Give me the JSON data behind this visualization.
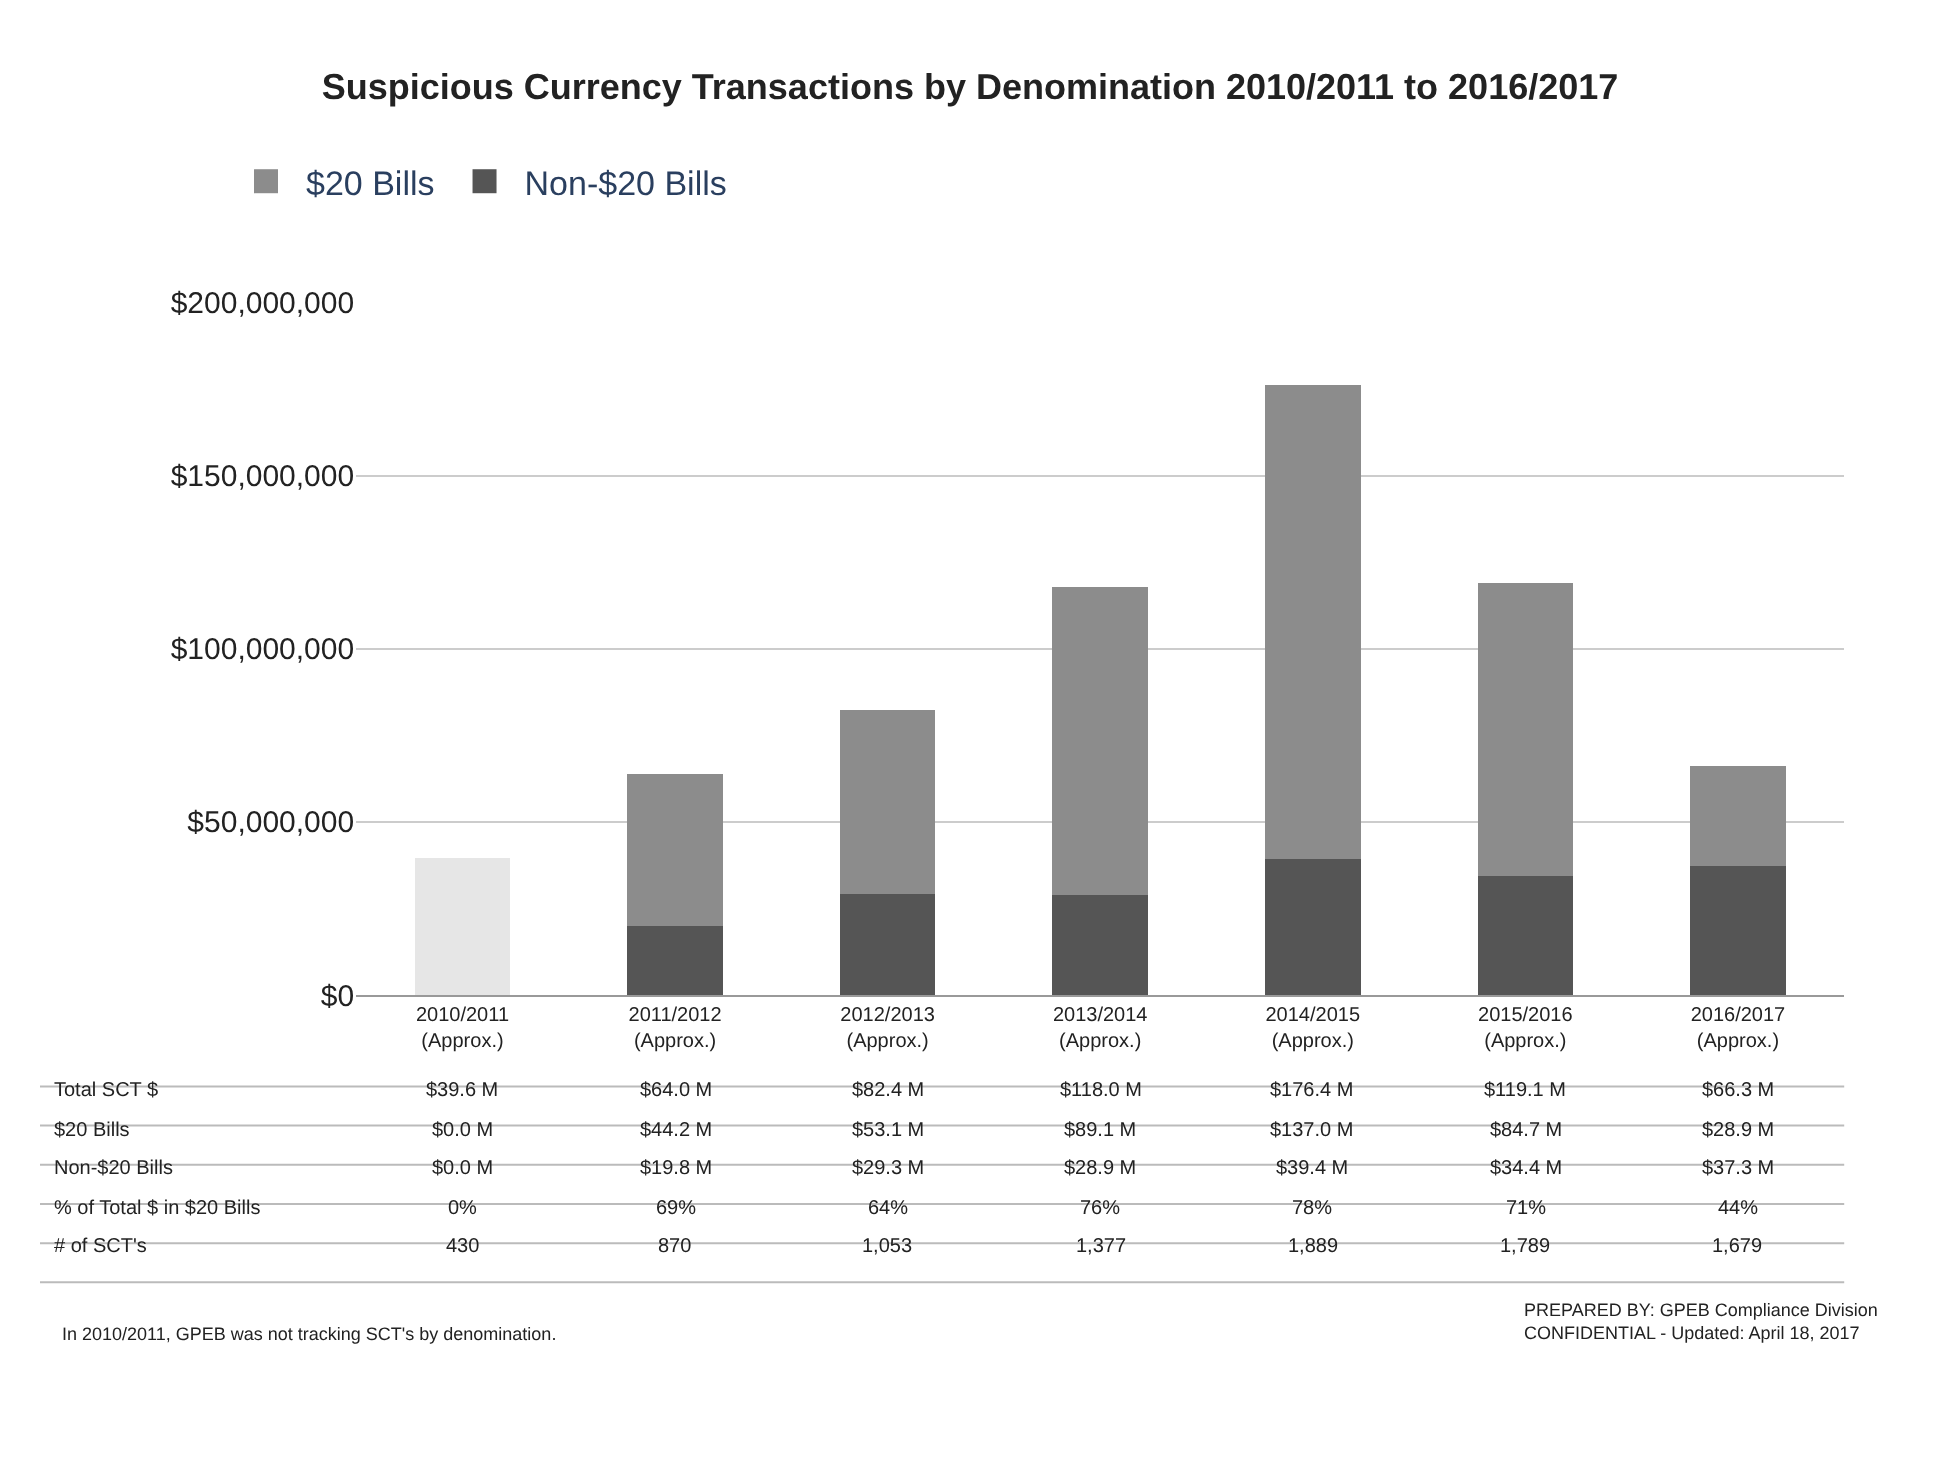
{
  "chart_data": {
    "type": "bar",
    "stacked": true,
    "title": "Suspicious Currency Transactions by Denomination 2010/2011 to 2016/2017",
    "categories": [
      "2010/2011\n(Approx.)",
      "2011/2012\n(Approx.)",
      "2012/2013\n(Approx.)",
      "2013/2014\n(Approx.)",
      "2014/2015\n(Approx.)",
      "2015/2016\n(Approx.)",
      "2016/2017\n(Approx.)"
    ],
    "series": [
      {
        "name": "Non-$20 Bills",
        "color": "#555555",
        "values": [
          0,
          19800000,
          29300000,
          28900000,
          39400000,
          34400000,
          37300000
        ],
        "value_labels": [
          "$0.0 M",
          "$19.8 M",
          "$29.3 M",
          "$28.9 M",
          "$39.4 M",
          "$34.4 M",
          "$37.3 M"
        ]
      },
      {
        "name": "$20 Bills",
        "color": "#8c8c8c",
        "values": [
          0,
          44200000,
          53100000,
          89100000,
          137000000,
          84700000,
          28900000
        ],
        "value_labels": [
          "$0.0 M",
          "$44.2 M",
          "$53.1 M",
          "$89.1 M",
          "$137.0 M",
          "$84.7 M",
          "$28.9 M"
        ]
      },
      {
        "color": "#e6e6e6",
        "values": [
          39600000,
          null,
          null,
          null,
          null,
          null,
          null
        ]
      }
    ],
    "ylim": [
      0,
      200000000
    ],
    "yticks": [
      {
        "value": 0,
        "label": "$0"
      },
      {
        "value": 50000000,
        "label": "$50,000,000"
      },
      {
        "value": 100000000,
        "label": "$100,000,000"
      },
      {
        "value": 150000000,
        "label": "$150,000,000"
      },
      {
        "value": 200000000,
        "label": "$200,000,000"
      }
    ],
    "grid": "y",
    "legend": "top left",
    "annotations": [
      "In 2010/2011, GPEB was not tracking SCT's by denomination.",
      "PREPARED BY: GPEB Compliance Division\nCONFIDENTIAL - Updated: April 18, 2017",
      "Total SCT $",
      "$39.6 M",
      "$64.0 M",
      "$82.4 M",
      "$118.0 M",
      "$176.4 M",
      "$119.1 M",
      "$66.3 M",
      "% of Total $ in $20 Bills",
      "0%",
      "69%",
      "64%",
      "76%",
      "78%",
      "71%",
      "44%",
      "# of SCT's",
      "430",
      "870",
      "1,053",
      "1,377",
      "1,889",
      "1,789",
      "1,679"
    ]
  }
}
